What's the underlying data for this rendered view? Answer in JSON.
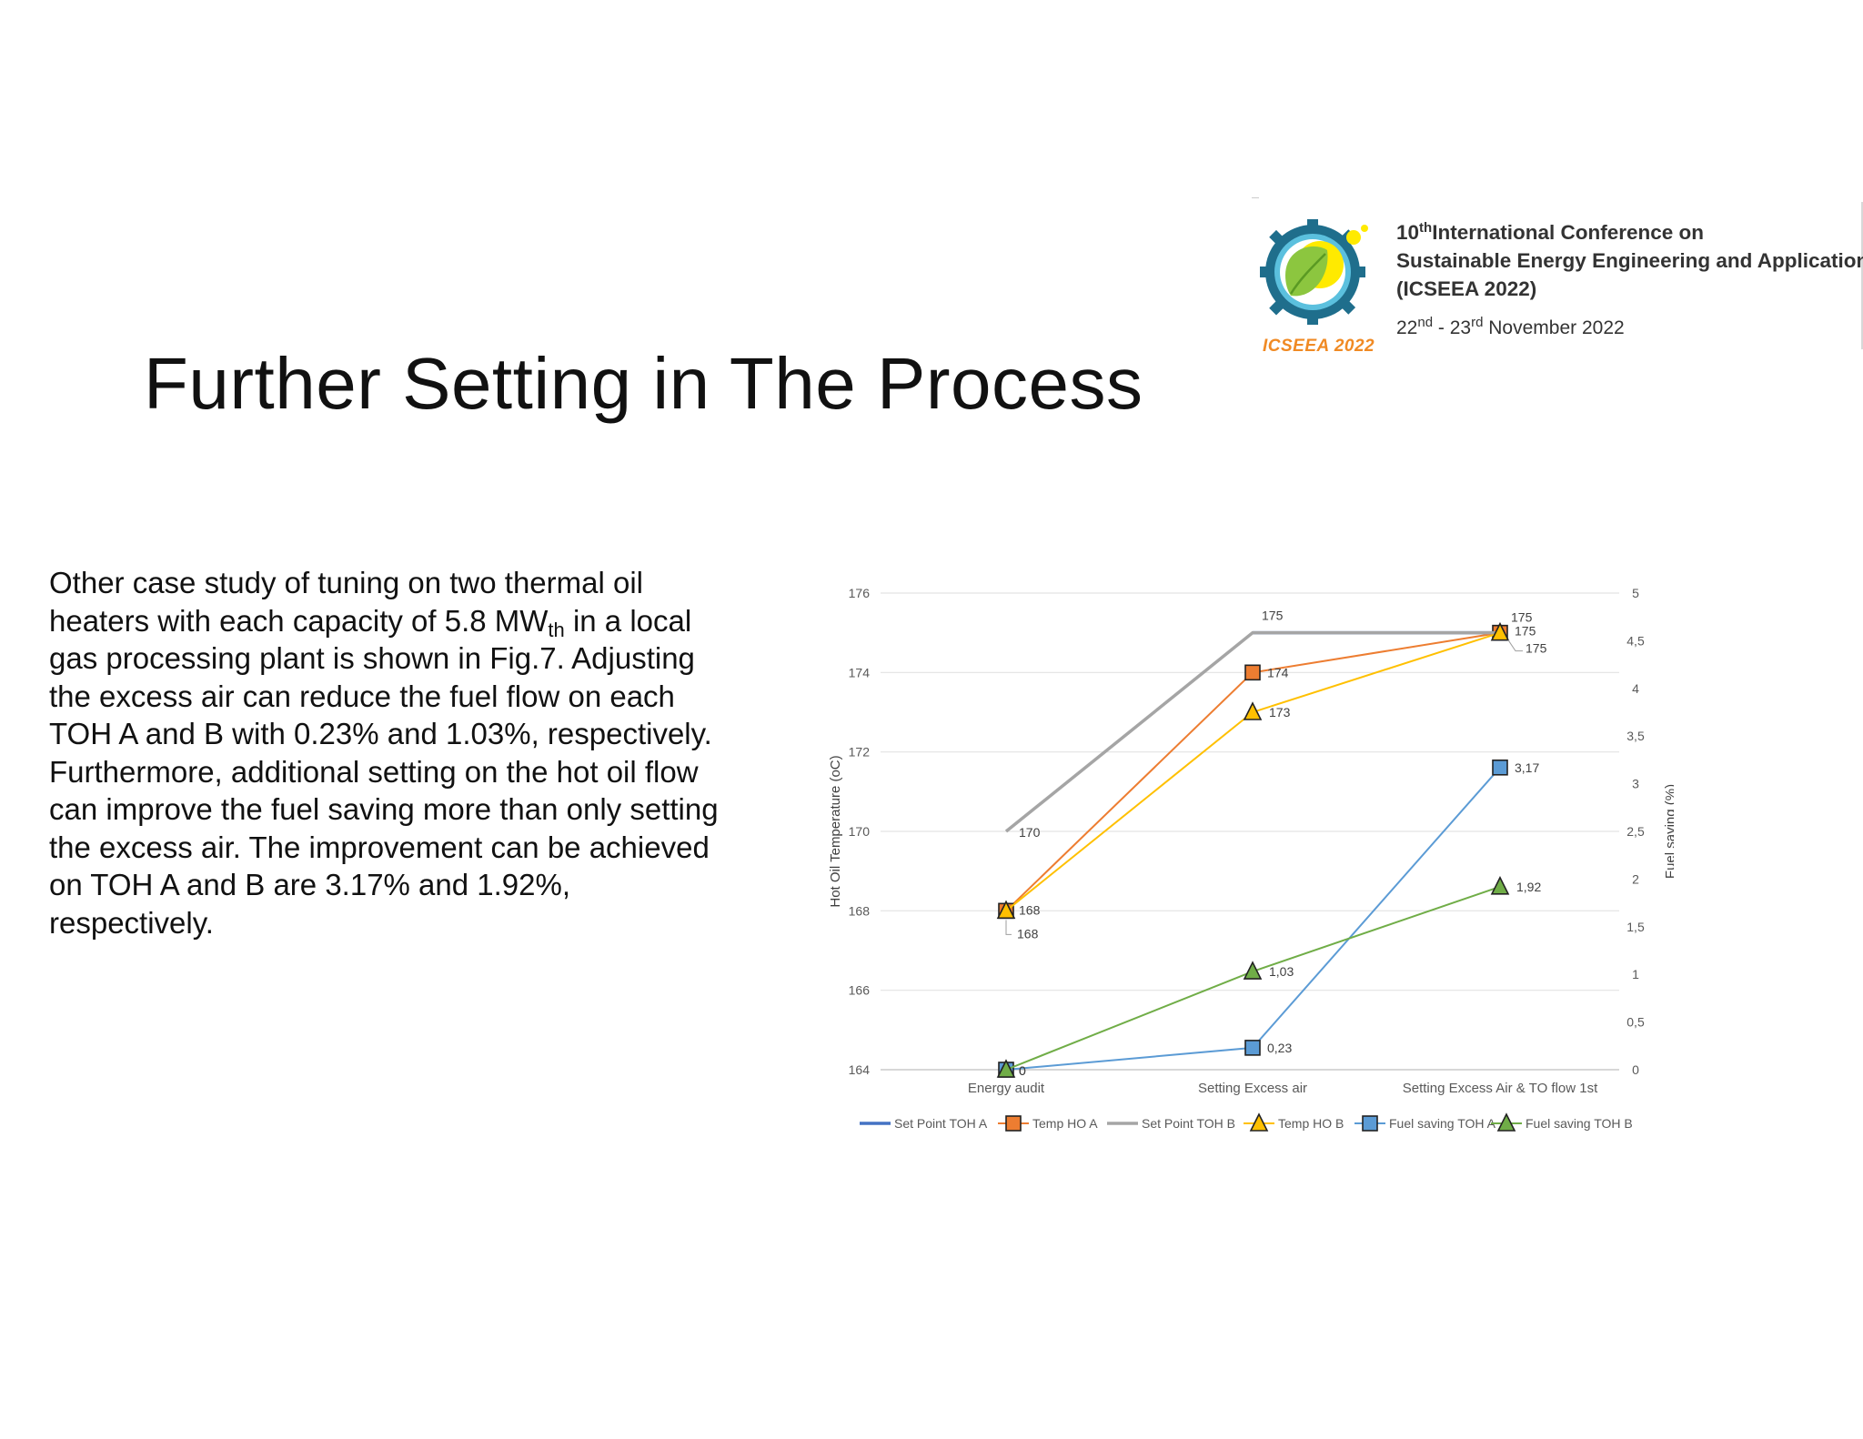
{
  "slide": {
    "title": "Further Setting in The Process"
  },
  "conference": {
    "logo_text": "ICSEEA 2022",
    "line1_ordinal_num": "10",
    "line1_ordinal_sup": "th",
    "line1_rest": "International Conference on",
    "line2": "Sustainable Energy Engineering and Application",
    "line3": "(ICSEEA 2022)",
    "date_day1": "22",
    "date_sup1": "nd",
    "date_sep": " - 23",
    "date_sup2": "rd",
    "date_rest": " November 2022"
  },
  "body": {
    "part1": "Other case study of tuning on two thermal oil heaters with each capacity of 5.8 MW",
    "subscript": "th",
    "part2": " in a local gas processing plant is shown in Fig.7. Adjusting the excess air can reduce the fuel flow on each TOH A and B with 0.23% and 1.03%, respectively. Furthermore, additional setting on the hot oil flow can improve the fuel saving more than only setting the excess air. The improvement can be achieved on TOH A and B are 3.17% and 1.92%, respectively."
  },
  "chart_data": {
    "type": "line",
    "categories": [
      "Energy audit",
      "Setting Excess air",
      "Setting Excess Air & TO flow 1st"
    ],
    "ylabel": "Hot Oil Temperature (oC)",
    "y2label": "Fuel saving (%)",
    "ylim": [
      164,
      176
    ],
    "yticks": [
      "164",
      "166",
      "168",
      "170",
      "172",
      "174",
      "176"
    ],
    "y2lim": [
      0,
      5
    ],
    "y2ticks": [
      "0",
      "0,5",
      "1",
      "1,5",
      "2",
      "2,5",
      "3",
      "3,5",
      "4",
      "4,5",
      "5"
    ],
    "grid": true,
    "legend_position": "bottom",
    "series": [
      {
        "name": "Set Point TOH A",
        "axis": "left",
        "values": [
          null,
          175,
          175
        ],
        "labels": [
          "",
          "",
          ""
        ],
        "color": "#4472c4",
        "marker": "none"
      },
      {
        "name": "Temp HO A",
        "axis": "left",
        "values": [
          168,
          174,
          175
        ],
        "labels": [
          "168",
          "174",
          "175"
        ],
        "color": "#ed7d31",
        "marker": "square"
      },
      {
        "name": "Set Point TOH B",
        "axis": "left",
        "values": [
          170,
          175,
          175
        ],
        "labels": [
          "170",
          "175",
          "175"
        ],
        "color": "#a5a5a5",
        "marker": "none"
      },
      {
        "name": "Temp HO B",
        "axis": "left",
        "values": [
          168,
          173,
          175
        ],
        "labels": [
          "168",
          "173",
          "175"
        ],
        "color": "#ffc000",
        "marker": "triangle"
      },
      {
        "name": "Fuel saving TOH A",
        "axis": "right",
        "values": [
          0,
          0.23,
          3.17
        ],
        "labels": [
          "0",
          "0,23",
          "3,17"
        ],
        "color": "#5b9bd5",
        "marker": "square"
      },
      {
        "name": "Fuel saving TOH B",
        "axis": "right",
        "values": [
          0,
          1.03,
          1.92
        ],
        "labels": [
          "0",
          "1,03",
          "1,92"
        ],
        "color": "#70ad47",
        "marker": "triangle"
      }
    ]
  }
}
